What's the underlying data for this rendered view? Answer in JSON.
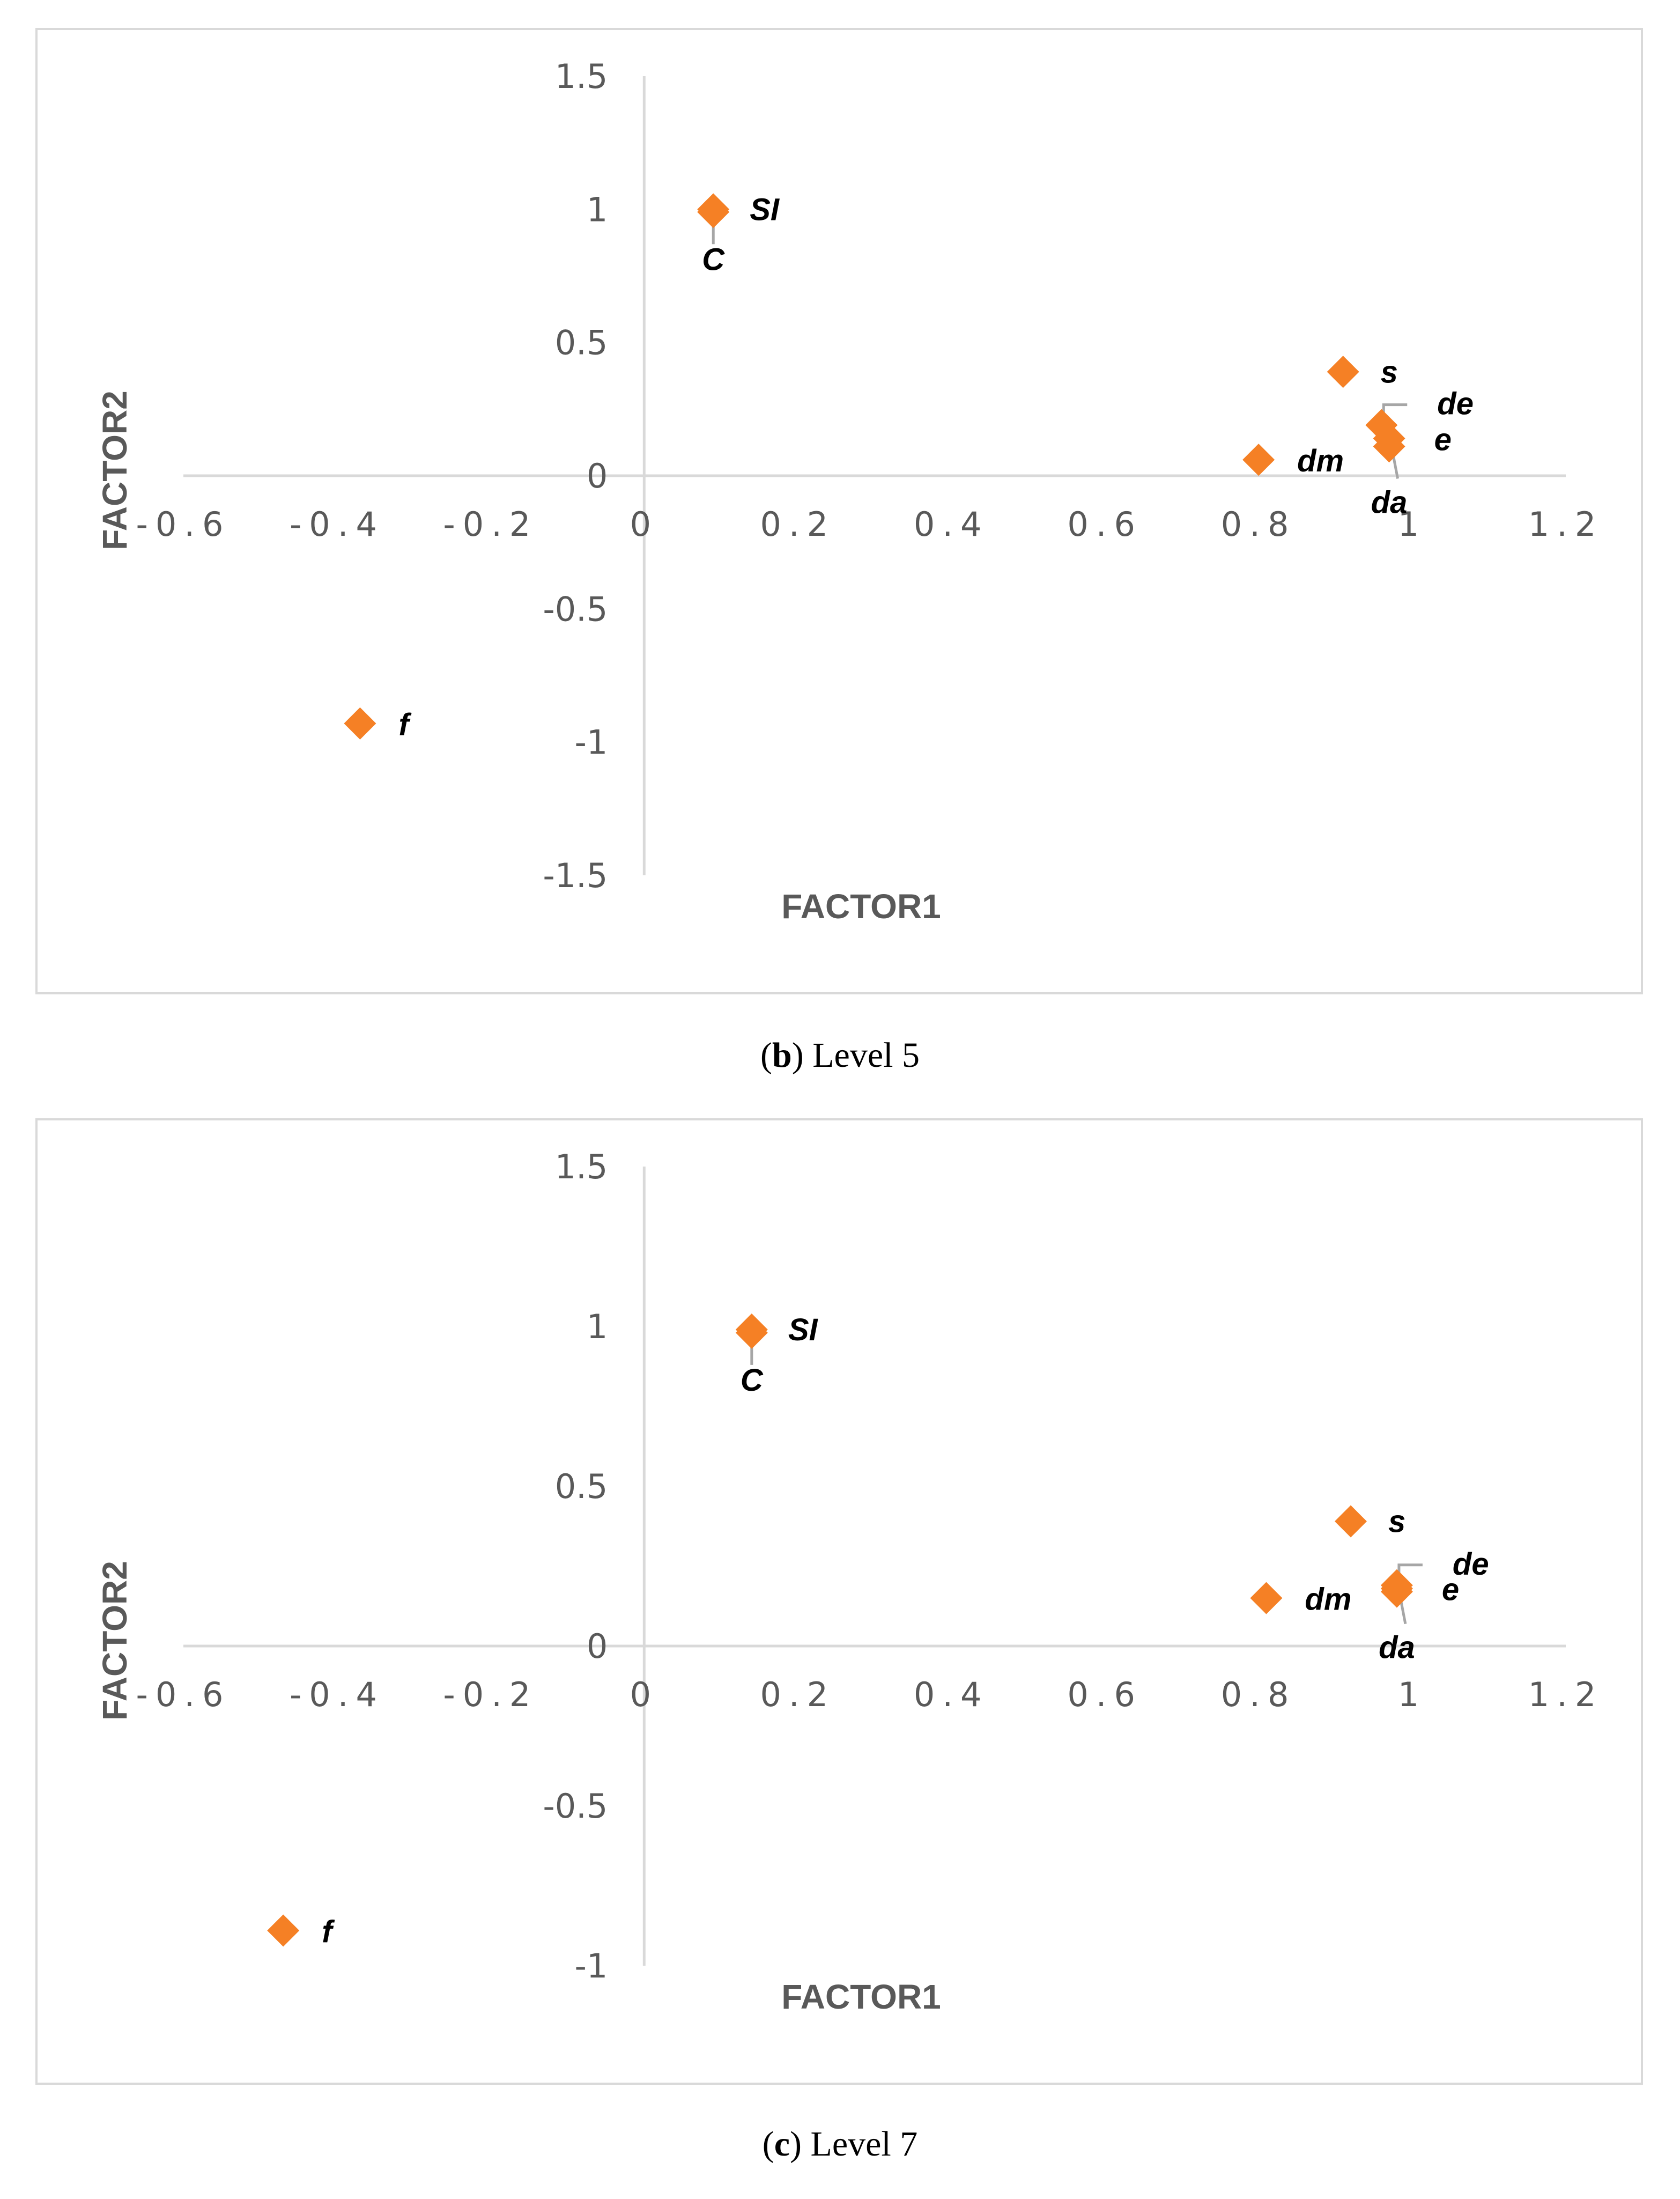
{
  "colors": {
    "marker": "#f58025",
    "axis": "#d9d9d9",
    "tick_text": "#595959",
    "axis_title": "#595959",
    "point_label": "#000000",
    "leader": "#a6a6a6"
  },
  "chart_data": [
    {
      "id": "level5",
      "type": "scatter",
      "caption_letter": "b",
      "caption_text": "Level 5",
      "xlabel": "FACTOR1",
      "ylabel": "FACTOR2",
      "xlim": [
        -0.6,
        1.2
      ],
      "ylim": [
        -1.5,
        1.5
      ],
      "x_ticks": [
        "-0.6",
        "-0.4",
        "-0.2",
        "0",
        "0.2",
        "0.4",
        "0.6",
        "0.8",
        "1",
        "1.2"
      ],
      "y_ticks": [
        "1.5",
        "1",
        "0.5",
        "0",
        "-0.5",
        "-1",
        "-1.5"
      ],
      "points": [
        {
          "label": "SI",
          "x": 0.09,
          "y": 1.0
        },
        {
          "label": "C",
          "x": 0.09,
          "y": 0.99
        },
        {
          "label": "s",
          "x": 0.91,
          "y": 0.39
        },
        {
          "label": "de",
          "x": 0.96,
          "y": 0.19
        },
        {
          "label": "e",
          "x": 0.97,
          "y": 0.14
        },
        {
          "label": "da",
          "x": 0.97,
          "y": 0.11
        },
        {
          "label": "dm",
          "x": 0.8,
          "y": 0.06
        },
        {
          "label": "f",
          "x": -0.37,
          "y": -0.93
        }
      ]
    },
    {
      "id": "level7",
      "type": "scatter",
      "caption_letter": "c",
      "caption_text": "Level 7",
      "xlabel": "FACTOR1",
      "ylabel": "FACTOR2",
      "xlim": [
        -0.6,
        1.2
      ],
      "ylim": [
        -1.0,
        1.5
      ],
      "x_ticks": [
        "-0.6",
        "-0.4",
        "-0.2",
        "0",
        "0.2",
        "0.4",
        "0.6",
        "0.8",
        "1",
        "1.2"
      ],
      "y_ticks": [
        "1.5",
        "1",
        "0.5",
        "0",
        "-0.5",
        "-1"
      ],
      "points": [
        {
          "label": "SI",
          "x": 0.14,
          "y": 0.99
        },
        {
          "label": "C",
          "x": 0.14,
          "y": 0.98
        },
        {
          "label": "s",
          "x": 0.92,
          "y": 0.39
        },
        {
          "label": "de",
          "x": 0.98,
          "y": 0.19
        },
        {
          "label": "e",
          "x": 0.98,
          "y": 0.18
        },
        {
          "label": "da",
          "x": 0.98,
          "y": 0.17
        },
        {
          "label": "dm",
          "x": 0.81,
          "y": 0.15
        },
        {
          "label": "f",
          "x": -0.47,
          "y": -0.89
        }
      ]
    }
  ]
}
